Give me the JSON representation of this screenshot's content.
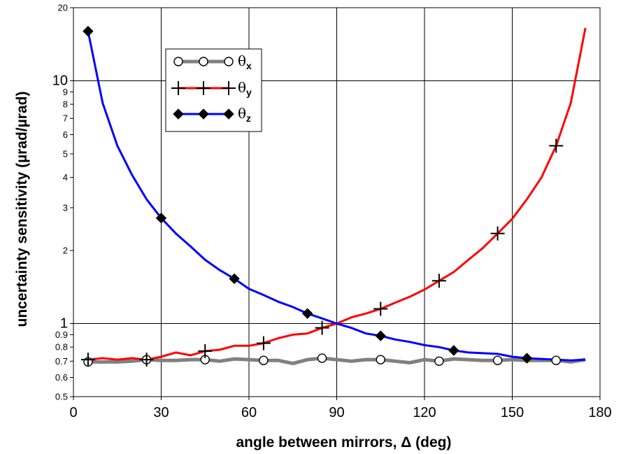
{
  "chart_data": {
    "type": "line",
    "title": "",
    "xlabel": "angle between mirrors, Δ (deg)",
    "ylabel": "uncertainty sensitivity (µrad/µrad)",
    "xlim": [
      0,
      180
    ],
    "ylim": [
      0.5,
      20
    ],
    "y_scale": "log",
    "grid": true,
    "legend_position": "top-left",
    "x_ticks": [
      {
        "value": 0,
        "label": "0"
      },
      {
        "value": 30,
        "label": "30"
      },
      {
        "value": 60,
        "label": "60"
      },
      {
        "value": 90,
        "label": "90"
      },
      {
        "value": 120,
        "label": "120"
      },
      {
        "value": 150,
        "label": "150"
      },
      {
        "value": 180,
        "label": "180"
      }
    ],
    "y_ticks_major": [
      {
        "value": 1,
        "label": "1"
      },
      {
        "value": 10,
        "label": "10"
      }
    ],
    "y_ticks_minor": [
      {
        "value": 0.5,
        "label": "0.5"
      },
      {
        "value": 0.6,
        "label": "0.6"
      },
      {
        "value": 0.7,
        "label": "0.7"
      },
      {
        "value": 0.8,
        "label": "0.8"
      },
      {
        "value": 0.9,
        "label": "0.9"
      },
      {
        "value": 2,
        "label": "2"
      },
      {
        "value": 3,
        "label": "3"
      },
      {
        "value": 4,
        "label": "4"
      },
      {
        "value": 5,
        "label": "5"
      },
      {
        "value": 6,
        "label": "6"
      },
      {
        "value": 7,
        "label": "7"
      },
      {
        "value": 8,
        "label": "8"
      },
      {
        "value": 9,
        "label": "9"
      },
      {
        "value": 20,
        "label": "20"
      }
    ],
    "series": [
      {
        "name": "θx",
        "symbol": "θ",
        "subscript": "x",
        "color": "#808080",
        "marker": "circle",
        "line_x": [
          5,
          10,
          15,
          20,
          25,
          30,
          35,
          40,
          45,
          50,
          55,
          60,
          65,
          70,
          75,
          80,
          85,
          90,
          95,
          100,
          105,
          110,
          115,
          120,
          125,
          130,
          135,
          140,
          145,
          150,
          155,
          160,
          165,
          170,
          175
        ],
        "line_y": [
          0.695,
          0.695,
          0.695,
          0.7,
          0.71,
          0.705,
          0.705,
          0.71,
          0.71,
          0.7,
          0.715,
          0.71,
          0.705,
          0.705,
          0.685,
          0.71,
          0.72,
          0.71,
          0.7,
          0.71,
          0.71,
          0.7,
          0.69,
          0.71,
          0.7,
          0.715,
          0.71,
          0.705,
          0.705,
          0.71,
          0.705,
          0.705,
          0.705,
          0.695,
          0.71
        ],
        "marker_x": [
          5,
          25,
          45,
          65,
          85,
          105,
          125,
          145,
          165
        ],
        "marker_y": [
          0.695,
          0.71,
          0.71,
          0.705,
          0.72,
          0.71,
          0.7,
          0.705,
          0.705
        ]
      },
      {
        "name": "θy",
        "symbol": "θ",
        "subscript": "y",
        "color": "#ff0000",
        "marker": "plus",
        "line_x": [
          5,
          10,
          15,
          20,
          25,
          30,
          35,
          40,
          45,
          50,
          55,
          60,
          65,
          70,
          75,
          80,
          85,
          90,
          95,
          100,
          105,
          110,
          115,
          120,
          125,
          130,
          135,
          140,
          145,
          150,
          155,
          160,
          165,
          170,
          175
        ],
        "line_y": [
          0.71,
          0.72,
          0.71,
          0.72,
          0.71,
          0.73,
          0.76,
          0.74,
          0.77,
          0.78,
          0.81,
          0.81,
          0.83,
          0.87,
          0.9,
          0.91,
          0.96,
          1.0,
          1.06,
          1.1,
          1.15,
          1.22,
          1.29,
          1.38,
          1.5,
          1.63,
          1.83,
          2.05,
          2.35,
          2.7,
          3.25,
          4.0,
          5.4,
          8.1,
          16.5
        ],
        "marker_x": [
          5,
          25,
          45,
          65,
          85,
          105,
          125,
          145,
          165
        ],
        "marker_y": [
          0.71,
          0.71,
          0.77,
          0.83,
          0.96,
          1.15,
          1.5,
          2.35,
          5.4
        ]
      },
      {
        "name": "θz",
        "symbol": "θ",
        "subscript": "z",
        "color": "#0000ff",
        "marker": "diamond",
        "line_x": [
          5,
          10,
          15,
          20,
          25,
          30,
          35,
          40,
          45,
          50,
          55,
          60,
          65,
          70,
          75,
          80,
          85,
          90,
          95,
          100,
          105,
          110,
          115,
          120,
          125,
          130,
          135,
          140,
          145,
          150,
          155,
          160,
          165,
          170,
          175
        ],
        "line_y": [
          16.0,
          8.1,
          5.4,
          4.1,
          3.25,
          2.72,
          2.35,
          2.08,
          1.83,
          1.66,
          1.53,
          1.39,
          1.31,
          1.23,
          1.17,
          1.1,
          1.05,
          1.0,
          0.96,
          0.91,
          0.89,
          0.86,
          0.84,
          0.815,
          0.8,
          0.775,
          0.76,
          0.755,
          0.75,
          0.73,
          0.72,
          0.715,
          0.71,
          0.705,
          0.71
        ],
        "marker_x": [
          5,
          30,
          55,
          80,
          105,
          130,
          155
        ],
        "marker_y": [
          16.0,
          2.72,
          1.53,
          1.1,
          0.89,
          0.775,
          0.72
        ]
      }
    ]
  }
}
